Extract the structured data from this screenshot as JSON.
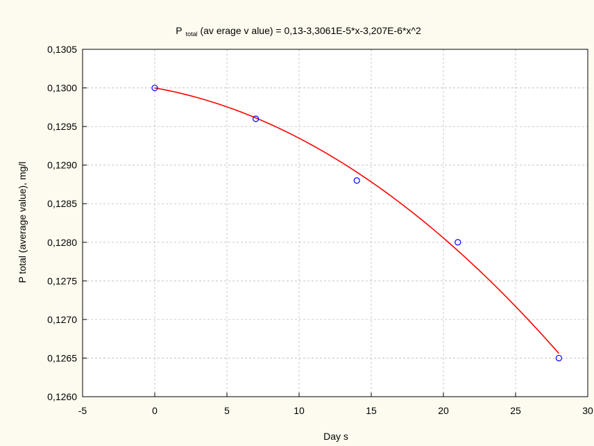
{
  "chart_data": {
    "type": "scatter",
    "title_main": "P",
    "title_sub": "total",
    "title_rest": " (av erage v alue) = 0,13-3,3061E-5*x-3,207E-6*x^2",
    "xlabel": "Day s",
    "ylabel": "P total (average value), mg/l",
    "xlim": [
      -5,
      30
    ],
    "ylim": [
      0.126,
      0.1305
    ],
    "grid": true,
    "xtick_values": [
      -5,
      0,
      5,
      10,
      15,
      20,
      25,
      30
    ],
    "xtick_labels": [
      "-5",
      "0",
      "5",
      "10",
      "15",
      "20",
      "25",
      "30"
    ],
    "ytick_values": [
      0.126,
      0.1265,
      0.127,
      0.1275,
      0.128,
      0.1285,
      0.129,
      0.1295,
      0.13,
      0.1305
    ],
    "ytick_labels": [
      "0,1260",
      "0,1265",
      "0,1270",
      "0,1275",
      "0,1280",
      "0,1285",
      "0,1290",
      "0,1295",
      "0,1300",
      "0,1305"
    ],
    "series": [
      {
        "x": [
          0,
          7,
          14,
          21,
          28
        ],
        "y": [
          0.13,
          0.1296,
          0.1288,
          0.128,
          0.1265
        ],
        "marker_color": "#0000FF"
      }
    ],
    "fit": {
      "coefficients": [
        0.13,
        -3.3061e-05,
        -3.207e-06
      ],
      "x_range": [
        0,
        28
      ],
      "color": "#FF0000"
    },
    "colors": {
      "background": "#FDFBEF",
      "plot_background": "#FFFFFF",
      "grid": "#BBBBBB",
      "axis": "#000000"
    }
  }
}
